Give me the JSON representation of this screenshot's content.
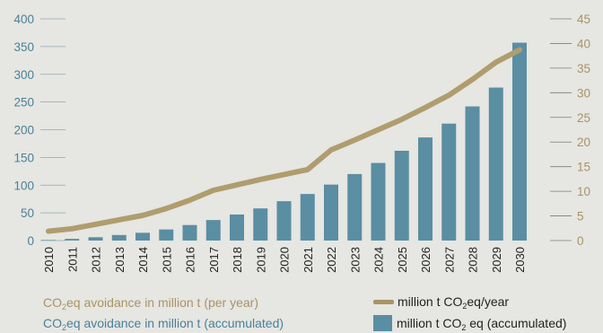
{
  "chart_data": {
    "type": "bar",
    "categories": [
      "2010",
      "2011",
      "2012",
      "2013",
      "2014",
      "2015",
      "2016",
      "2017",
      "2018",
      "2019",
      "2020",
      "2021",
      "2022",
      "2023",
      "2024",
      "2025",
      "2026",
      "2027",
      "2028",
      "2029",
      "2030"
    ],
    "series": [
      {
        "name": "million t CO2 eq (accumulated)",
        "type": "bar",
        "axis": "left",
        "values": [
          1,
          3,
          6,
          10,
          14,
          20,
          28,
          37,
          47,
          58,
          71,
          84,
          101,
          120,
          140,
          162,
          186,
          211,
          242,
          276,
          357
        ]
      },
      {
        "name": "million t CO2 eq/year",
        "type": "line",
        "axis": "right",
        "values": [
          1.9,
          2.4,
          3.3,
          4.2,
          5.1,
          6.5,
          8.2,
          10.2,
          11.3,
          12.4,
          13.4,
          14.4,
          18.4,
          20.4,
          22.5,
          24.6,
          27.0,
          29.5,
          32.7,
          36.2,
          38.7
        ]
      }
    ],
    "ylim_left": [
      0,
      400
    ],
    "yticks_left": [
      0,
      50,
      100,
      150,
      200,
      250,
      300,
      350,
      400
    ],
    "ylim_right": [
      0,
      45
    ],
    "yticks_right": [
      0,
      5,
      10,
      15,
      20,
      25,
      30,
      35,
      40,
      45
    ],
    "grid": false,
    "legend_position": "bottom",
    "colors": {
      "bar": "#5a8ea3",
      "line": "#b09d6e",
      "left_axis_text": "#4a8099",
      "right_axis_text": "#a89463",
      "background": "#e6e6e2"
    },
    "axis_labels": {
      "per_year_prefix": "CO",
      "per_year_sub": "2",
      "per_year_suffix": "eq avoidance in million t (per year)",
      "accumulated_prefix": "CO",
      "accumulated_sub": "2",
      "accumulated_suffix": "eq avoidance in million t (accumulated)"
    },
    "legend": {
      "line_prefix": "million t CO",
      "line_sub": "2",
      "line_suffix": "eq/year",
      "bar_prefix": "million t CO",
      "bar_sub": "2",
      "bar_suffix": " eq (accumulated)"
    }
  }
}
